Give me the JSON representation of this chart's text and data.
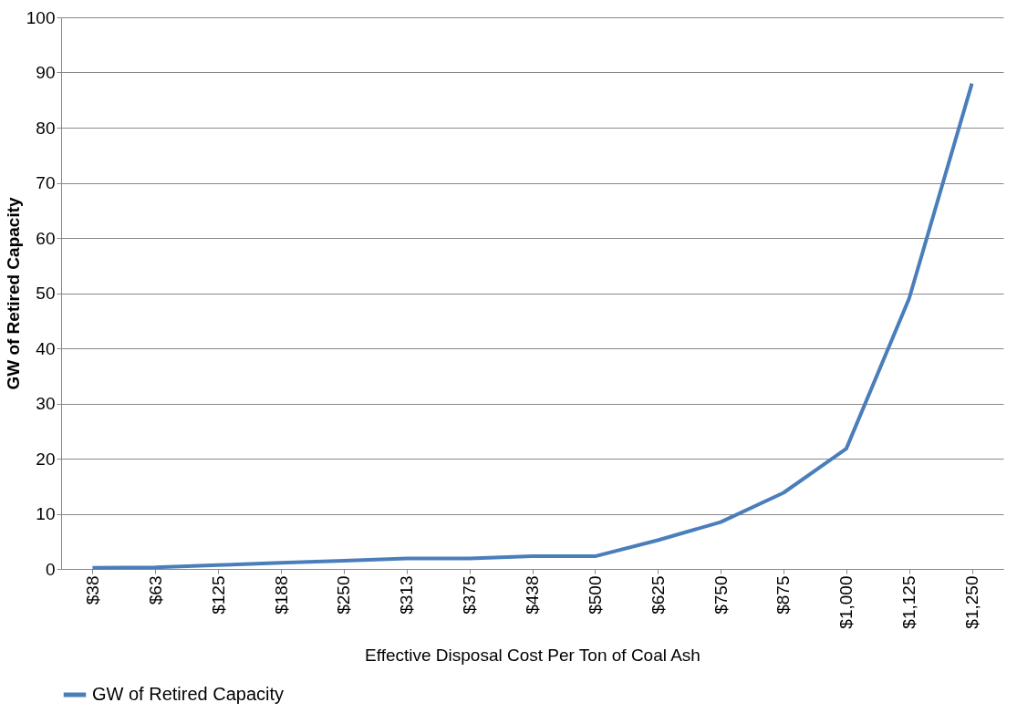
{
  "chart_data": {
    "type": "line",
    "xlabel": "Effective Disposal Cost Per Ton of Coal Ash",
    "ylabel": "GW of Retired Capacity",
    "categories": [
      "$38",
      "$63",
      "$125",
      "$188",
      "$250",
      "$313",
      "$375",
      "$438",
      "$500",
      "$625",
      "$750",
      "$875",
      "$1,000",
      "$1,125",
      "$1,250"
    ],
    "series": [
      {
        "name": "GW of Retired Capacity",
        "color": "#4a7ebb",
        "values": [
          0.2,
          0.3,
          0.7,
          1.1,
          1.5,
          1.9,
          1.9,
          2.3,
          2.3,
          5.2,
          8.5,
          13.8,
          21.8,
          49,
          88
        ]
      }
    ],
    "ylim": [
      0,
      100
    ],
    "yticks": [
      0,
      10,
      20,
      30,
      40,
      50,
      60,
      70,
      80,
      90,
      100
    ],
    "grid": "y",
    "legend": "bottom",
    "marker": "none",
    "line_style": "solid"
  }
}
